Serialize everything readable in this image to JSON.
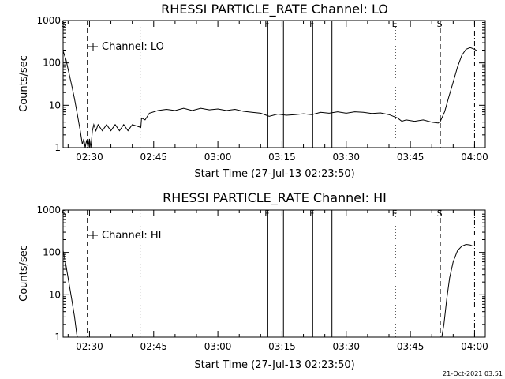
{
  "chart_data": [
    {
      "type": "line",
      "title": "RHESSI PARTICLE_RATE Channel: LO",
      "xlabel": "Start Time (27-Jul-13 02:23:50)",
      "ylabel": "Counts/sec",
      "y_scale": "log",
      "ylim": [
        1,
        1000
      ],
      "xlim": [
        "02:23:50",
        "04:02:30"
      ],
      "x_ticks": [
        "02:30",
        "02:45",
        "03:00",
        "03:15",
        "03:30",
        "03:45",
        "04:00"
      ],
      "y_ticks": [
        "1",
        "10",
        "100",
        "1000"
      ],
      "legend": "top-left",
      "grid": false,
      "series": [
        {
          "name": "Channel: LO",
          "points": [
            [
              "02:23:50",
              190
            ],
            [
              "02:24:30",
              120
            ],
            [
              "02:25:10",
              60
            ],
            [
              "02:25:50",
              30
            ],
            [
              "02:26:30",
              14
            ],
            [
              "02:27:10",
              6
            ],
            [
              "02:27:50",
              2.5
            ],
            [
              "02:28:20",
              1.2
            ],
            [
              "02:28:40",
              1.6
            ],
            [
              "02:29:00",
              1.0
            ],
            [
              "02:29:20",
              1.5
            ],
            [
              "02:29:40",
              1.0
            ],
            [
              "02:30:00",
              1.6
            ],
            [
              "02:30:20",
              1.0
            ],
            [
              "02:30:40",
              2.5
            ],
            [
              "02:31:00",
              3.5
            ],
            [
              "02:31:30",
              2.5
            ],
            [
              "02:32:00",
              3.5
            ],
            [
              "02:33:00",
              2.5
            ],
            [
              "02:34:00",
              3.5
            ],
            [
              "02:35:00",
              2.5
            ],
            [
              "02:36:00",
              3.5
            ],
            [
              "02:37:00",
              2.5
            ],
            [
              "02:38:00",
              3.5
            ],
            [
              "02:39:00",
              2.5
            ],
            [
              "02:40:00",
              3.5
            ],
            [
              "02:42:00",
              3.0
            ],
            [
              "02:42:10",
              5.0
            ],
            [
              "02:43:00",
              4.5
            ],
            [
              "02:44:00",
              6.5
            ],
            [
              "02:46:00",
              7.5
            ],
            [
              "02:48:00",
              8.0
            ],
            [
              "02:50:00",
              7.5
            ],
            [
              "02:52:00",
              8.5
            ],
            [
              "02:54:00",
              7.5
            ],
            [
              "02:56:00",
              8.5
            ],
            [
              "02:58:00",
              7.8
            ],
            [
              "03:00:00",
              8.2
            ],
            [
              "03:02:00",
              7.5
            ],
            [
              "03:04:00",
              8.0
            ],
            [
              "03:06:00",
              7.2
            ],
            [
              "03:08:00",
              6.8
            ],
            [
              "03:10:00",
              6.5
            ],
            [
              "03:12:00",
              5.5
            ],
            [
              "03:14:00",
              6.2
            ],
            [
              "03:16:00",
              5.8
            ],
            [
              "03:18:00",
              6.0
            ],
            [
              "03:20:00",
              6.3
            ],
            [
              "03:22:00",
              6.0
            ],
            [
              "03:24:00",
              6.8
            ],
            [
              "03:26:00",
              6.5
            ],
            [
              "03:28:00",
              7.0
            ],
            [
              "03:30:00",
              6.5
            ],
            [
              "03:32:00",
              7.0
            ],
            [
              "03:34:00",
              6.8
            ],
            [
              "03:36:00",
              6.4
            ],
            [
              "03:38:00",
              6.6
            ],
            [
              "03:40:00",
              6.0
            ],
            [
              "03:41:00",
              5.5
            ],
            [
              "03:42:00",
              5.0
            ],
            [
              "03:43:00",
              4.2
            ],
            [
              "03:44:00",
              4.5
            ],
            [
              "03:46:00",
              4.2
            ],
            [
              "03:48:00",
              4.5
            ],
            [
              "03:50:00",
              4.0
            ],
            [
              "03:51:30",
              3.8
            ],
            [
              "03:52:00",
              4.2
            ],
            [
              "03:53:00",
              7
            ],
            [
              "03:54:00",
              16
            ],
            [
              "03:55:00",
              35
            ],
            [
              "03:56:00",
              80
            ],
            [
              "03:57:00",
              150
            ],
            [
              "03:58:00",
              210
            ],
            [
              "03:59:00",
              230
            ],
            [
              "04:00:00",
              210
            ],
            [
              "04:00:40",
              190
            ]
          ]
        }
      ],
      "markers": [
        {
          "label": "S",
          "t": "02:24:10",
          "line": "none"
        },
        {
          "label": "",
          "t": "02:29:30",
          "line": "dashed"
        },
        {
          "label": "",
          "t": "02:41:50",
          "line": "dotted"
        },
        {
          "label": "F",
          "t": "03:11:40",
          "line": "solid"
        },
        {
          "label": "",
          "t": "03:15:20",
          "line": "solid"
        },
        {
          "label": "F",
          "t": "03:22:10",
          "line": "solid"
        },
        {
          "label": "",
          "t": "03:26:40",
          "line": "solid"
        },
        {
          "label": "E",
          "t": "03:41:30",
          "line": "dotted"
        },
        {
          "label": "S",
          "t": "03:52:00",
          "line": "dashed"
        },
        {
          "label": "",
          "t": "04:00:00",
          "line": "dashdot"
        }
      ]
    },
    {
      "type": "line",
      "title": "RHESSI PARTICLE_RATE Channel: HI",
      "xlabel": "Start Time (27-Jul-13 02:23:50)",
      "ylabel": "Counts/sec",
      "y_scale": "log",
      "ylim": [
        1,
        1000
      ],
      "xlim": [
        "02:23:50",
        "04:02:30"
      ],
      "x_ticks": [
        "02:30",
        "02:45",
        "03:00",
        "03:15",
        "03:30",
        "03:45",
        "04:00"
      ],
      "y_ticks": [
        "1",
        "10",
        "100",
        "1000"
      ],
      "legend": "top-left",
      "grid": false,
      "series": [
        {
          "name": "Channel: HI",
          "points": [
            [
              "02:23:50",
              110
            ],
            [
              "02:24:30",
              50
            ],
            [
              "02:25:10",
              20
            ],
            [
              "02:25:50",
              8
            ],
            [
              "02:26:30",
              3
            ],
            [
              "02:27:00",
              1.2
            ],
            [
              "02:27:10",
              1.0
            ],
            [
              "03:52:20",
              1.0
            ],
            [
              "03:52:50",
              2
            ],
            [
              "03:53:30",
              8
            ],
            [
              "03:54:10",
              25
            ],
            [
              "03:55:00",
              60
            ],
            [
              "03:56:00",
              110
            ],
            [
              "03:57:00",
              140
            ],
            [
              "03:58:00",
              155
            ],
            [
              "03:59:00",
              150
            ],
            [
              "03:59:40",
              140
            ]
          ]
        }
      ],
      "markers": [
        {
          "label": "S",
          "t": "02:24:10",
          "line": "none"
        },
        {
          "label": "",
          "t": "02:29:30",
          "line": "dashed"
        },
        {
          "label": "",
          "t": "02:41:50",
          "line": "dotted"
        },
        {
          "label": "F",
          "t": "03:11:40",
          "line": "solid"
        },
        {
          "label": "",
          "t": "03:15:20",
          "line": "solid"
        },
        {
          "label": "F",
          "t": "03:22:10",
          "line": "solid"
        },
        {
          "label": "",
          "t": "03:26:40",
          "line": "solid"
        },
        {
          "label": "E",
          "t": "03:41:30",
          "line": "dotted"
        },
        {
          "label": "S",
          "t": "03:52:00",
          "line": "dashed"
        },
        {
          "label": "",
          "t": "04:00:00",
          "line": "dashdot"
        }
      ]
    }
  ],
  "footer": {
    "timestamp": "21-Oct-2021 03:51"
  }
}
